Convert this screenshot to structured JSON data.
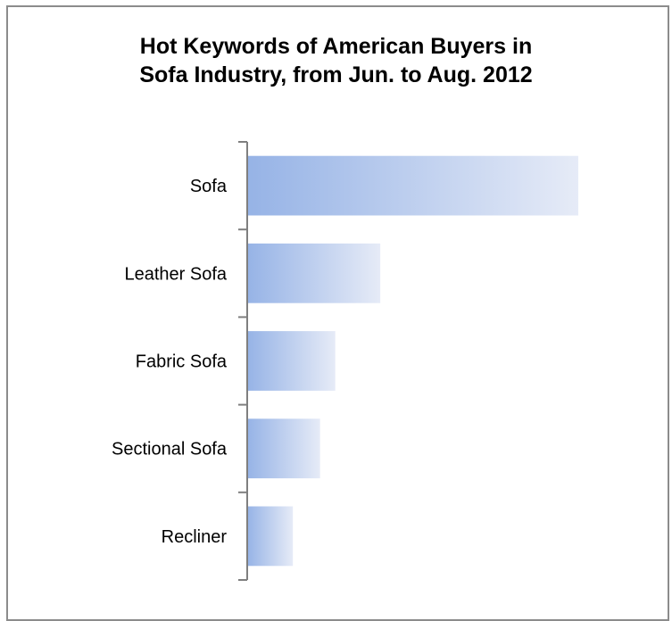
{
  "chart_data": {
    "type": "bar",
    "orientation": "horizontal",
    "title_lines": [
      "Hot Keywords of American Buyers in",
      "Sofa Industry, from Jun. to Aug. 2012"
    ],
    "categories": [
      "Sofa",
      "Leather Sofa",
      "Fabric Sofa",
      "Sectional Sofa",
      "Recliner"
    ],
    "values": [
      100,
      40.2,
      26.6,
      22.0,
      13.8
    ],
    "xlabel": "",
    "ylabel": "",
    "xlim": [
      0,
      100
    ],
    "grid": false,
    "legend": "none",
    "colors": {
      "bar_start": "#96b3e6",
      "bar_end": "#e6ebf7",
      "axis": "#7f7f7f",
      "frame": "#8c8c8c"
    }
  }
}
